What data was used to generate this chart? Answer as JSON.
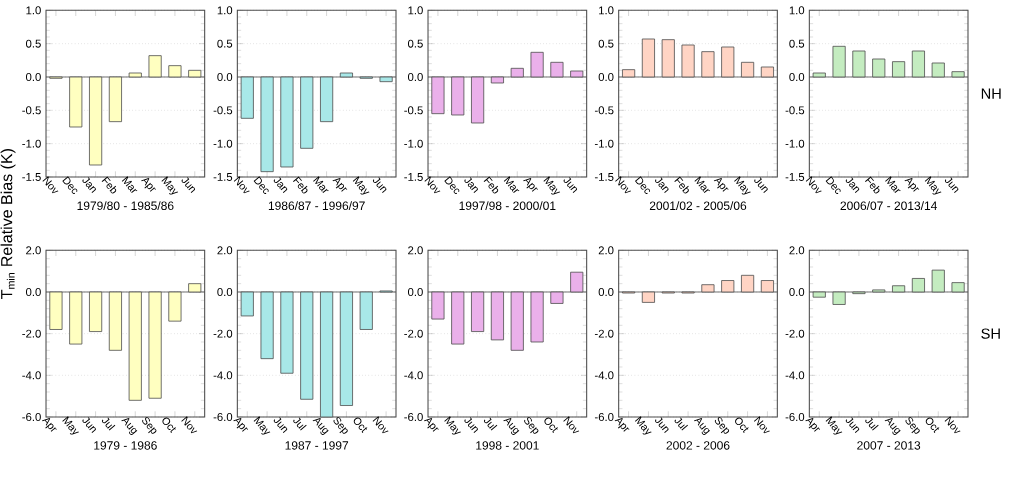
{
  "chart_data": [
    {
      "type": "bar",
      "categories": [
        "Nov",
        "Dec",
        "Jan",
        "Feb",
        "Mar",
        "Apr",
        "May",
        "Jun"
      ],
      "values": [
        -0.02,
        -0.75,
        -1.32,
        -0.67,
        0.06,
        0.32,
        0.17,
        0.1
      ],
      "color": "#ffffc0",
      "xlabel": "1979/80 - 1985/86",
      "ylabel": "T$_{min}$ Relative Bias (K)",
      "ylim": [
        -1.5,
        1.0
      ],
      "yticks": [
        {
          "value": -1.5,
          "label": "-1.5"
        },
        {
          "value": -1.0,
          "label": "-1.0"
        },
        {
          "value": -0.5,
          "label": "-0.5"
        },
        {
          "value": 0,
          "label": "0.0"
        },
        {
          "value": 0.5,
          "label": "0.5"
        },
        {
          "value": 1.0,
          "label": "1.0"
        }
      ],
      "grid": "y",
      "ref_lines": [
        {
          "axis": "y",
          "value": 0
        }
      ]
    },
    {
      "type": "bar",
      "categories": [
        "Nov",
        "Dec",
        "Jan",
        "Feb",
        "Mar",
        "Apr",
        "May",
        "Jun"
      ],
      "values": [
        -0.62,
        -1.42,
        -1.35,
        -1.07,
        -0.67,
        0.06,
        -0.02,
        -0.07
      ],
      "color": "#a8e8e8",
      "xlabel": "1986/87 - 1996/97",
      "ylim": [
        -1.5,
        1.0
      ],
      "yticks": [
        {
          "value": -1.5,
          "label": "-1.5"
        },
        {
          "value": -1.0,
          "label": "-1.0"
        },
        {
          "value": -0.5,
          "label": "-0.5"
        },
        {
          "value": 0,
          "label": "0.0"
        },
        {
          "value": 0.5,
          "label": "0.5"
        },
        {
          "value": 1.0,
          "label": "1.0"
        }
      ],
      "grid": "y",
      "ref_lines": [
        {
          "axis": "y",
          "value": 0
        }
      ]
    },
    {
      "type": "bar",
      "categories": [
        "Nov",
        "Dec",
        "Jan",
        "Feb",
        "Mar",
        "Apr",
        "May",
        "Jun"
      ],
      "values": [
        -0.55,
        -0.57,
        -0.69,
        -0.09,
        0.13,
        0.37,
        0.22,
        0.09
      ],
      "color": "#eab0ea",
      "xlabel": "1997/98 - 2000/01",
      "ylim": [
        -1.5,
        1.0
      ],
      "yticks": [
        {
          "value": -1.5,
          "label": "-1.5"
        },
        {
          "value": -1.0,
          "label": "-1.0"
        },
        {
          "value": -0.5,
          "label": "-0.5"
        },
        {
          "value": 0,
          "label": "0.0"
        },
        {
          "value": 0.5,
          "label": "0.5"
        },
        {
          "value": 1.0,
          "label": "1.0"
        }
      ],
      "grid": "y",
      "ref_lines": [
        {
          "axis": "y",
          "value": 0
        }
      ]
    },
    {
      "type": "bar",
      "categories": [
        "Nov",
        "Dec",
        "Jan",
        "Feb",
        "Mar",
        "Apr",
        "May",
        "Jun"
      ],
      "values": [
        0.11,
        0.57,
        0.56,
        0.48,
        0.38,
        0.45,
        0.22,
        0.15
      ],
      "color": "#ffd4c4",
      "xlabel": "2001/02 - 2005/06",
      "ylim": [
        -1.5,
        1.0
      ],
      "yticks": [
        {
          "value": -1.5,
          "label": "-1.5"
        },
        {
          "value": -1.0,
          "label": "-1.0"
        },
        {
          "value": -0.5,
          "label": "-0.5"
        },
        {
          "value": 0,
          "label": "0.0"
        },
        {
          "value": 0.5,
          "label": "0.5"
        },
        {
          "value": 1.0,
          "label": "1.0"
        }
      ],
      "grid": "y",
      "ref_lines": [
        {
          "axis": "y",
          "value": 0
        }
      ]
    },
    {
      "type": "bar",
      "categories": [
        "Nov",
        "Dec",
        "Jan",
        "Feb",
        "Mar",
        "Apr",
        "May",
        "Jun"
      ],
      "values": [
        0.06,
        0.46,
        0.39,
        0.27,
        0.23,
        0.39,
        0.21,
        0.08
      ],
      "color": "#c4ecc0",
      "xlabel": "2006/07 - 2013/14",
      "annotations": [
        "NH"
      ],
      "ylim": [
        -1.5,
        1.0
      ],
      "yticks": [
        {
          "value": -1.5,
          "label": "-1.5"
        },
        {
          "value": -1.0,
          "label": "-1.0"
        },
        {
          "value": -0.5,
          "label": "-0.5"
        },
        {
          "value": 0,
          "label": "0.0"
        },
        {
          "value": 0.5,
          "label": "0.5"
        },
        {
          "value": 1.0,
          "label": "1.0"
        }
      ],
      "grid": "y",
      "ref_lines": [
        {
          "axis": "y",
          "value": 0
        }
      ]
    },
    {
      "type": "bar",
      "categories": [
        "Apr",
        "May",
        "Jun",
        "Jul",
        "Aug",
        "Sep",
        "Oct",
        "Nov"
      ],
      "values": [
        -1.8,
        -2.5,
        -1.9,
        -2.8,
        -5.2,
        -5.1,
        -1.4,
        0.4
      ],
      "color": "#ffffc0",
      "xlabel": "1979 - 1986",
      "ylim": [
        -6.0,
        2.0
      ],
      "yticks": [
        {
          "value": -6,
          "label": "-6.0"
        },
        {
          "value": -4,
          "label": "-4.0"
        },
        {
          "value": -2,
          "label": "-2.0"
        },
        {
          "value": 0,
          "label": "0.0"
        },
        {
          "value": 2,
          "label": "2.0"
        }
      ],
      "grid": "y",
      "ref_lines": [
        {
          "axis": "y",
          "value": 0
        }
      ]
    },
    {
      "type": "bar",
      "categories": [
        "Apr",
        "May",
        "Jun",
        "Jul",
        "Aug",
        "Sep",
        "Oct",
        "Nov"
      ],
      "values": [
        -1.15,
        -3.2,
        -3.9,
        -5.15,
        -6.0,
        -5.45,
        -1.8,
        0.05
      ],
      "color": "#a8e8e8",
      "xlabel": "1987 - 1997",
      "ylim": [
        -6.0,
        2.0
      ],
      "yticks": [
        {
          "value": -6,
          "label": "-6.0"
        },
        {
          "value": -4,
          "label": "-4.0"
        },
        {
          "value": -2,
          "label": "-2.0"
        },
        {
          "value": 0,
          "label": "0.0"
        },
        {
          "value": 2,
          "label": "2.0"
        }
      ],
      "grid": "y",
      "ref_lines": [
        {
          "axis": "y",
          "value": 0
        }
      ]
    },
    {
      "type": "bar",
      "categories": [
        "Apr",
        "May",
        "Jun",
        "Jul",
        "Aug",
        "Sep",
        "Oct",
        "Nov"
      ],
      "values": [
        -1.3,
        -2.5,
        -1.9,
        -2.3,
        -2.8,
        -2.4,
        -0.55,
        0.95
      ],
      "color": "#eab0ea",
      "xlabel": "1998 - 2001",
      "ylim": [
        -6.0,
        2.0
      ],
      "yticks": [
        {
          "value": -6,
          "label": "-6.0"
        },
        {
          "value": -4,
          "label": "-4.0"
        },
        {
          "value": -2,
          "label": "-2.0"
        },
        {
          "value": 0,
          "label": "0.0"
        },
        {
          "value": 2,
          "label": "2.0"
        }
      ],
      "grid": "y",
      "ref_lines": [
        {
          "axis": "y",
          "value": 0
        }
      ]
    },
    {
      "type": "bar",
      "categories": [
        "Apr",
        "May",
        "Jun",
        "Jul",
        "Aug",
        "Sep",
        "Oct",
        "Nov"
      ],
      "values": [
        -0.05,
        -0.5,
        -0.05,
        -0.05,
        0.35,
        0.55,
        0.8,
        0.55
      ],
      "color": "#ffd4c4",
      "xlabel": "2002 - 2006",
      "ylim": [
        -6.0,
        2.0
      ],
      "yticks": [
        {
          "value": -6,
          "label": "-6.0"
        },
        {
          "value": -4,
          "label": "-4.0"
        },
        {
          "value": -2,
          "label": "-2.0"
        },
        {
          "value": 0,
          "label": "0.0"
        },
        {
          "value": 2,
          "label": "2.0"
        }
      ],
      "grid": "y",
      "ref_lines": [
        {
          "axis": "y",
          "value": 0
        }
      ]
    },
    {
      "type": "bar",
      "categories": [
        "Apr",
        "May",
        "Jun",
        "Jul",
        "Aug",
        "Sep",
        "Oct",
        "Nov"
      ],
      "values": [
        -0.25,
        -0.6,
        -0.08,
        0.1,
        0.3,
        0.65,
        1.05,
        0.45
      ],
      "color": "#c4ecc0",
      "xlabel": "2007 - 2013",
      "annotations": [
        "SH"
      ],
      "ylim": [
        -6.0,
        2.0
      ],
      "yticks": [
        {
          "value": -6,
          "label": "-6.0"
        },
        {
          "value": -4,
          "label": "-4.0"
        },
        {
          "value": -2,
          "label": "-2.0"
        },
        {
          "value": 0,
          "label": "0.0"
        },
        {
          "value": 2,
          "label": "2.0"
        }
      ],
      "grid": "y",
      "ref_lines": [
        {
          "axis": "y",
          "value": 0
        }
      ]
    }
  ]
}
